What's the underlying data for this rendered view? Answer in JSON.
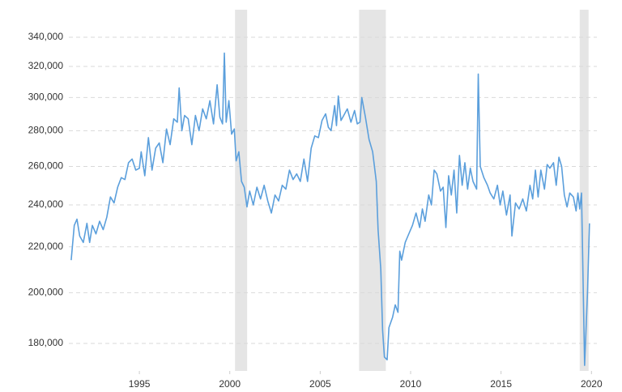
{
  "chart_data": {
    "type": "line",
    "log_scale": true,
    "grid": true,
    "color": "#5b9fdc",
    "shade_color": "#e5e5e5",
    "xlim": [
      1991.1,
      2020.3
    ],
    "xticks": [
      1995,
      2000,
      2005,
      2010,
      2015,
      2020
    ],
    "ylim": [
      170000,
      360000
    ],
    "yticks": [
      {
        "value": 180000,
        "label": "180,000"
      },
      {
        "value": 200000,
        "label": "200,000"
      },
      {
        "value": 220000,
        "label": "220,000"
      },
      {
        "value": 240000,
        "label": "240,000"
      },
      {
        "value": 260000,
        "label": "260,000"
      },
      {
        "value": 280000,
        "label": "280,000"
      },
      {
        "value": 300000,
        "label": "300,000"
      },
      {
        "value": 320000,
        "label": "320,000"
      },
      {
        "value": 340000,
        "label": "340,000"
      }
    ],
    "shaded_ranges": [
      [
        2000.29,
        2000.96
      ],
      [
        2007.15,
        2008.63
      ],
      [
        2019.35,
        2019.84
      ]
    ],
    "x": [
      1991.23,
      1991.4,
      1991.55,
      1991.7,
      1991.9,
      1992.1,
      1992.25,
      1992.4,
      1992.6,
      1992.8,
      1993.0,
      1993.2,
      1993.4,
      1993.6,
      1993.8,
      1994.0,
      1994.2,
      1994.4,
      1994.6,
      1994.8,
      1995.0,
      1995.1,
      1995.3,
      1995.5,
      1995.7,
      1995.9,
      1996.1,
      1996.3,
      1996.5,
      1996.7,
      1996.9,
      1997.1,
      1997.2,
      1997.35,
      1997.5,
      1997.7,
      1997.9,
      1998.1,
      1998.3,
      1998.5,
      1998.7,
      1998.9,
      1999.1,
      1999.3,
      1999.45,
      1999.6,
      1999.7,
      1999.8,
      1999.95,
      2000.1,
      2000.25,
      2000.35,
      2000.5,
      2000.65,
      2000.8,
      2000.95,
      2001.1,
      2001.3,
      2001.5,
      2001.7,
      2001.9,
      2002.1,
      2002.3,
      2002.5,
      2002.7,
      2002.9,
      2003.1,
      2003.3,
      2003.5,
      2003.7,
      2003.9,
      2004.1,
      2004.3,
      2004.5,
      2004.7,
      2004.9,
      2005.1,
      2005.3,
      2005.45,
      2005.6,
      2005.8,
      2005.9,
      2006.0,
      2006.15,
      2006.3,
      2006.5,
      2006.7,
      2006.9,
      2007.05,
      2007.2,
      2007.3,
      2007.5,
      2007.7,
      2007.9,
      2008.1,
      2008.2,
      2008.35,
      2008.45,
      2008.55,
      2008.7,
      2008.8,
      2009.0,
      2009.15,
      2009.3,
      2009.4,
      2009.5,
      2009.7,
      2009.9,
      2010.1,
      2010.3,
      2010.5,
      2010.65,
      2010.8,
      2011.0,
      2011.15,
      2011.3,
      2011.45,
      2011.65,
      2011.8,
      2011.95,
      2012.1,
      2012.25,
      2012.4,
      2012.55,
      2012.7,
      2012.85,
      2013.0,
      2013.15,
      2013.3,
      2013.45,
      2013.65,
      2013.74,
      2013.85,
      2014.05,
      2014.25,
      2014.4,
      2014.6,
      2014.8,
      2014.95,
      2015.1,
      2015.3,
      2015.5,
      2015.6,
      2015.8,
      2016.0,
      2016.2,
      2016.4,
      2016.6,
      2016.75,
      2016.9,
      2017.05,
      2017.2,
      2017.4,
      2017.55,
      2017.7,
      2017.9,
      2018.05,
      2018.2,
      2018.35,
      2018.5,
      2018.65,
      2018.8,
      2019.0,
      2019.15,
      2019.25,
      2019.35,
      2019.45,
      2019.62,
      2019.78,
      2019.89
    ],
    "values": [
      214000,
      230000,
      233000,
      225000,
      222000,
      231000,
      222000,
      230000,
      226000,
      232000,
      228000,
      234000,
      244000,
      241000,
      249000,
      254000,
      253000,
      262000,
      264000,
      258000,
      259000,
      268000,
      255000,
      276000,
      258000,
      270000,
      273000,
      262000,
      281000,
      272000,
      287000,
      285000,
      306000,
      280000,
      289000,
      287000,
      272000,
      289000,
      280000,
      293000,
      287000,
      298000,
      284000,
      308000,
      288000,
      284000,
      329000,
      285000,
      298000,
      278000,
      281000,
      263000,
      268000,
      252000,
      249000,
      239000,
      247000,
      240000,
      249000,
      243000,
      250000,
      242000,
      236000,
      245000,
      242000,
      250000,
      248000,
      258000,
      253000,
      256000,
      252000,
      264000,
      252000,
      270000,
      277000,
      276000,
      286000,
      290000,
      282000,
      280000,
      295000,
      283000,
      301000,
      286000,
      289000,
      293000,
      285000,
      292000,
      284000,
      285000,
      300000,
      288000,
      275000,
      268000,
      252000,
      228000,
      210000,
      185000,
      175000,
      174000,
      186000,
      190000,
      195000,
      192000,
      218000,
      214000,
      222000,
      226000,
      230000,
      236000,
      229000,
      238000,
      232000,
      245000,
      240000,
      258000,
      256000,
      247000,
      249000,
      229000,
      255000,
      245000,
      258000,
      236000,
      266000,
      250000,
      262000,
      248000,
      259000,
      252000,
      248000,
      315000,
      260000,
      254000,
      250000,
      246000,
      243000,
      250000,
      240000,
      247000,
      235000,
      245000,
      225000,
      241000,
      238000,
      243000,
      237000,
      250000,
      243000,
      258000,
      244000,
      258000,
      248000,
      261000,
      259000,
      262000,
      250000,
      265000,
      260000,
      245000,
      239000,
      246000,
      244000,
      237000,
      246000,
      238000,
      246000,
      172000,
      200000,
      231000
    ]
  }
}
